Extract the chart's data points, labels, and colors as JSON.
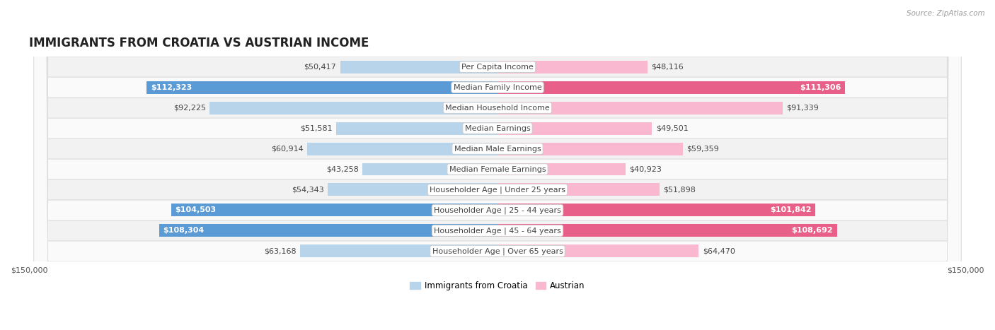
{
  "title": "IMMIGRANTS FROM CROATIA VS AUSTRIAN INCOME",
  "source": "Source: ZipAtlas.com",
  "categories": [
    "Per Capita Income",
    "Median Family Income",
    "Median Household Income",
    "Median Earnings",
    "Median Male Earnings",
    "Median Female Earnings",
    "Householder Age | Under 25 years",
    "Householder Age | 25 - 44 years",
    "Householder Age | 45 - 64 years",
    "Householder Age | Over 65 years"
  ],
  "croatia_values": [
    50417,
    112323,
    92225,
    51581,
    60914,
    43258,
    54343,
    104503,
    108304,
    63168
  ],
  "austrian_values": [
    48116,
    111306,
    91339,
    49501,
    59359,
    40923,
    51898,
    101842,
    108692,
    64470
  ],
  "croatia_labels": [
    "$50,417",
    "$112,323",
    "$92,225",
    "$51,581",
    "$60,914",
    "$43,258",
    "$54,343",
    "$104,503",
    "$108,304",
    "$63,168"
  ],
  "austrian_labels": [
    "$48,116",
    "$111,306",
    "$91,339",
    "$49,501",
    "$59,359",
    "$40,923",
    "$51,898",
    "$101,842",
    "$108,692",
    "$64,470"
  ],
  "max_value": 150000,
  "croatia_color_light": "#b8d4ea",
  "croatia_color_dark": "#5b9bd5",
  "austrian_color_light": "#f9b8cf",
  "austrian_color_dark": "#e8608a",
  "bar_height": 0.62,
  "row_bg_odd": "#f2f2f2",
  "row_bg_even": "#fafafa",
  "label_fontsize": 8.0,
  "category_fontsize": 8.0,
  "title_fontsize": 12,
  "legend_fontsize": 8.5,
  "axis_label_fontsize": 8.0,
  "inside_label_threshold": 0.25
}
